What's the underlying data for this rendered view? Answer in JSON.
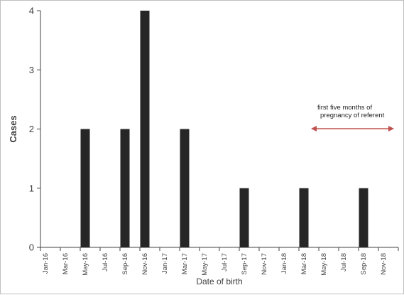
{
  "chart_data": {
    "type": "bar",
    "title": "",
    "xlabel": "Date of birth",
    "ylabel": "Cases",
    "ylim": [
      0,
      4
    ],
    "yticks": [
      "0",
      "1",
      "2",
      "3",
      "4"
    ],
    "grid": false,
    "bar_color": "#262626",
    "categories": [
      "Jan-16",
      "Feb-16",
      "Mar-16",
      "Apr-16",
      "May-16",
      "Jun-16",
      "Jul-16",
      "Aug-16",
      "Sep-16",
      "Oct-16",
      "Nov-16",
      "Dec-16",
      "Jan-17",
      "Feb-17",
      "Mar-17",
      "Apr-17",
      "May-17",
      "Jun-17",
      "Jul-17",
      "Aug-17",
      "Sep-17",
      "Oct-17",
      "Nov-17",
      "Dec-17",
      "Jan-18",
      "Feb-18",
      "Mar-18",
      "Apr-18",
      "May-18",
      "Jun-18",
      "Jul-18",
      "Aug-18",
      "Sep-18",
      "Oct-18",
      "Nov-18",
      "Dec-18"
    ],
    "tick_labels": [
      "Jan-16",
      "Mar-16",
      "May-16",
      "Jul-16",
      "Sep-16",
      "Nov-16",
      "Jan-17",
      "Mar-17",
      "May-17",
      "Jul-17",
      "Sep-17",
      "Nov-17",
      "Jan-18",
      "Mar-18",
      "May-18",
      "Jul-18",
      "Sep-18",
      "Nov-18"
    ],
    "values": [
      0,
      0,
      0,
      0,
      2,
      0,
      0,
      0,
      2,
      0,
      4,
      0,
      0,
      0,
      2,
      0,
      0,
      0,
      0,
      0,
      1,
      0,
      0,
      0,
      0,
      0,
      1,
      0,
      0,
      0,
      0,
      0,
      1,
      0,
      0,
      0
    ],
    "annotation": {
      "line1": "first five months of",
      "line2": "pregnancy of referent",
      "arrow_from": "Apr-18",
      "arrow_to": "Dec-18",
      "color": "#c0504d"
    }
  }
}
